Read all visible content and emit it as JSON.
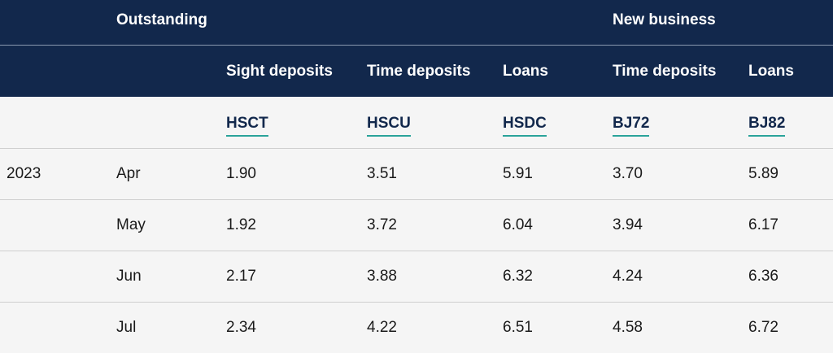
{
  "header": {
    "group_outstanding": "Outstanding",
    "group_new_business": "New business",
    "columns": [
      "Sight deposits",
      "Time deposits",
      "Loans",
      "Time deposits",
      "Loans"
    ],
    "codes": [
      "HSCT",
      "HSCU",
      "HSDC",
      "BJ72",
      "BJ82"
    ]
  },
  "rows": [
    {
      "year": "2023",
      "month": "Apr",
      "values": [
        "1.90",
        "3.51",
        "5.91",
        "3.70",
        "5.89"
      ]
    },
    {
      "year": "",
      "month": "May",
      "values": [
        "1.92",
        "3.72",
        "6.04",
        "3.94",
        "6.17"
      ]
    },
    {
      "year": "",
      "month": "Jun",
      "values": [
        "2.17",
        "3.88",
        "6.32",
        "4.24",
        "6.36"
      ]
    },
    {
      "year": "",
      "month": "Jul",
      "values": [
        "2.34",
        "4.22",
        "6.51",
        "4.58",
        "6.72"
      ]
    }
  ],
  "colors": {
    "header_bg": "#12284c",
    "accent_underline": "#2aa39a",
    "body_bg": "#f5f5f5"
  }
}
